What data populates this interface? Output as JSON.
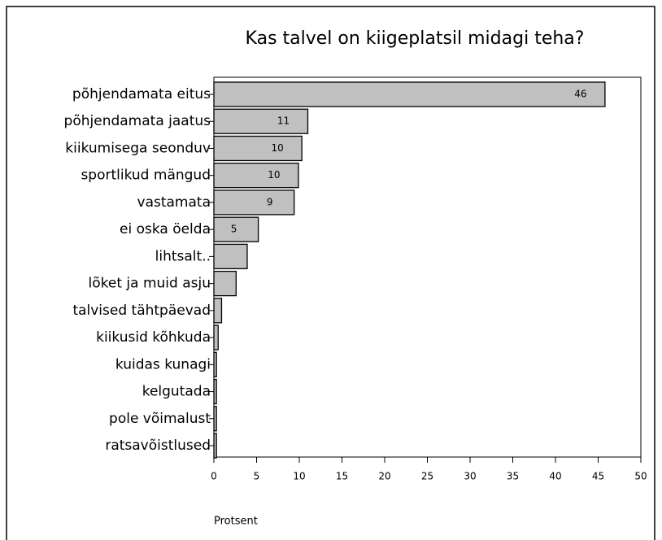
{
  "chart_data": {
    "type": "barh",
    "title": "Kas talvel on kiigeplatsil midagi teha?",
    "x_label": "Protsent",
    "categories": [
      "põhjendamata eitus",
      "põhjendamata jaatus",
      "kiikumisega seonduv",
      "sportlikud mängud",
      "vastamata",
      "ei oska öelda",
      "lihtsalt..",
      "lõket ja muid asju",
      "talvised tähtpäevad",
      "kiikusid kõhkuda",
      "kuidas kunagi",
      "kelgutada",
      "pole võimalust",
      "ratsavõistlused"
    ],
    "values": [
      45.8,
      11.0,
      10.3,
      9.9,
      9.4,
      5.2,
      3.9,
      2.6,
      0.9,
      0.5,
      0.3,
      0.3,
      0.3,
      0.3
    ],
    "value_labels": [
      "46",
      "11",
      "10",
      "10",
      "9",
      "5",
      null,
      null,
      null,
      null,
      null,
      null,
      null,
      null
    ],
    "color": "#c0c0c0",
    "xlim": [
      0,
      50
    ],
    "xticks": [
      0,
      5,
      10,
      15,
      20,
      25,
      30,
      35,
      40,
      45,
      50
    ]
  }
}
